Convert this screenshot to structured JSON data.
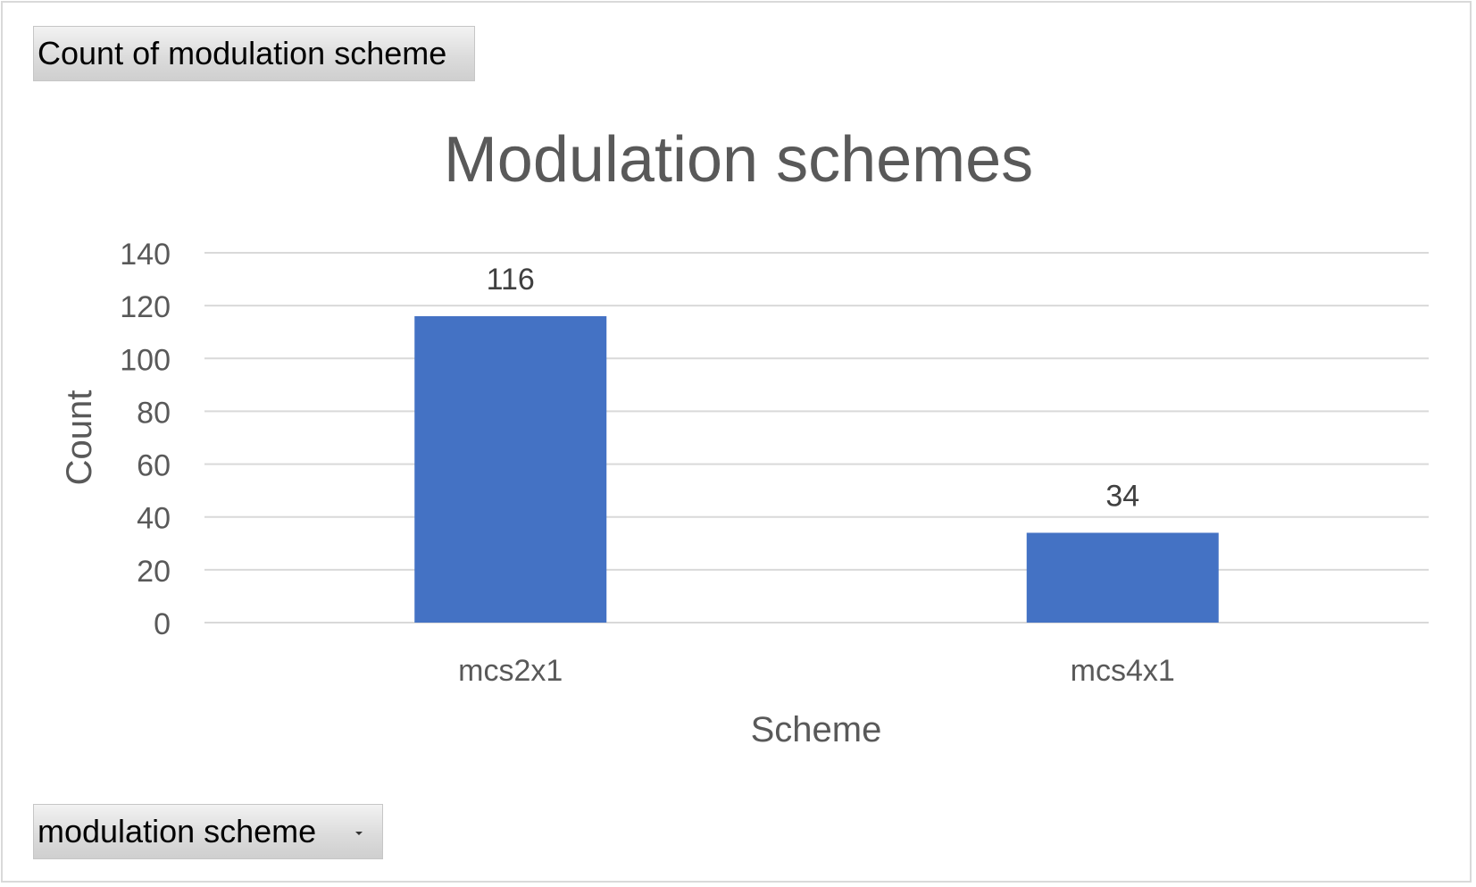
{
  "pivot": {
    "value_field": "Count of modulation scheme",
    "axis_field": "modulation scheme",
    "dropdown_icon": "chevron-down-icon"
  },
  "colors": {
    "bar": "#4472c4",
    "gridline": "#d9d9d9",
    "text": "#595959",
    "title": "#595959",
    "data_label": "#404040"
  },
  "chart_data": {
    "type": "bar",
    "title": "Modulation schemes",
    "xlabel": "Scheme",
    "ylabel": "Count",
    "categories": [
      "mcs2x1",
      "mcs4x1"
    ],
    "values": [
      116,
      34
    ],
    "data_labels": [
      "116",
      "34"
    ],
    "ylim": [
      0,
      140
    ],
    "yticks": [
      0,
      20,
      40,
      60,
      80,
      100,
      120,
      140
    ],
    "grid": true,
    "legend": "none"
  }
}
